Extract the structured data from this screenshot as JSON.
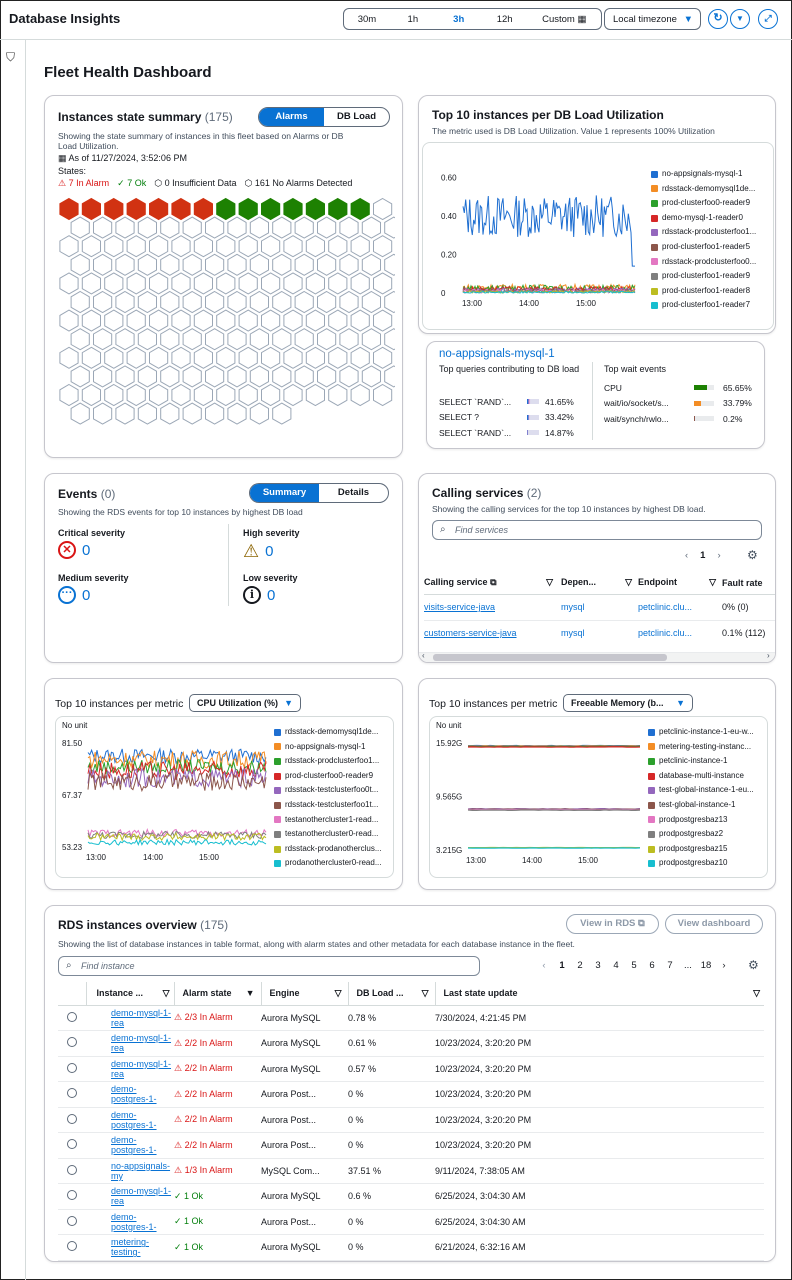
{
  "app_title": "Database Insights",
  "time_range": {
    "options": [
      "30m",
      "1h",
      "3h",
      "12h"
    ],
    "custom_label": "Custom",
    "selected": "3h"
  },
  "timezone": "Local timezone",
  "page_title": "Fleet Health Dashboard",
  "state_summary": {
    "title": "Instances state summary",
    "count": "(175)",
    "toggle": [
      "Alarms",
      "DB Load"
    ],
    "description": "Showing the state summary of instances in this fleet based on Alarms or DB Load Utilization.",
    "as_of": "As of 11/27/2024, 3:52:06 PM",
    "states_label": "States:",
    "states": {
      "alarm": "7 In Alarm",
      "ok": "7 Ok",
      "insufficient": "0 Insufficient Data",
      "no_alarms": "161 No Alarms Detected"
    },
    "hex_counts": {
      "alarm": 7,
      "ok": 7,
      "none": 161
    },
    "colors": {
      "alarm": "#d13212",
      "ok": "#1d8102"
    }
  },
  "top10_load": {
    "title": "Top 10 instances per DB Load Utilization",
    "description": "The metric used is DB Load Utilization. Value 1 represents 100% Utilization",
    "chart_data": {
      "type": "line",
      "x_ticks": [
        "13:00",
        "14:00",
        "15:00"
      ],
      "y_ticks": [
        "0.60",
        "0.40",
        "0.20",
        "0"
      ],
      "ylim": [
        0,
        0.65
      ],
      "series": [
        {
          "name": "no-appsignals-mysql-1",
          "color": "#1f6fd1",
          "level": 0.4
        },
        {
          "name": "rdsstack-demomysql1de...",
          "color": "#f38d25",
          "level": 0.03
        },
        {
          "name": "prod-clusterfoo0-reader9",
          "color": "#2ca02c",
          "level": 0.025
        },
        {
          "name": "demo-mysql-1-reader0",
          "color": "#d62728",
          "level": 0.02
        },
        {
          "name": "rdsstack-prodclusterfoo1...",
          "color": "#9467bd",
          "level": 0.015
        },
        {
          "name": "prod-clusterfoo1-reader5",
          "color": "#8c564b",
          "level": 0.012
        },
        {
          "name": "rdsstack-prodclusterfoo0...",
          "color": "#e377c2",
          "level": 0.01
        },
        {
          "name": "prod-clusterfoo1-reader9",
          "color": "#7f7f7f",
          "level": 0.008
        },
        {
          "name": "prod-clusterfoo1-reader8",
          "color": "#bcbd22",
          "level": 0.006
        },
        {
          "name": "prod-clusterfoo1-reader7",
          "color": "#17becf",
          "level": 0.004
        }
      ]
    }
  },
  "instance_detail": {
    "name": "no-appsignals-mysql-1",
    "queries_label": "Top queries contributing to DB load",
    "queries": [
      {
        "text": "SELECT `RAND`...",
        "pct": "41.65%",
        "value": 41.65
      },
      {
        "text": "SELECT ?",
        "pct": "33.42%",
        "value": 33.42
      },
      {
        "text": "SELECT `RAND`...",
        "pct": "14.87%",
        "value": 14.87
      }
    ],
    "wait_label": "Top wait events",
    "waits": [
      {
        "text": "CPU",
        "pct": "65.65%",
        "value": 65.65,
        "color": "#1d8102"
      },
      {
        "text": "wait/io/socket/s...",
        "pct": "33.79%",
        "value": 33.79,
        "color": "#f38d25"
      },
      {
        "text": "wait/synch/rwlo...",
        "pct": "0.2%",
        "value": 0.2,
        "color": "#8c564b"
      }
    ]
  },
  "events": {
    "title": "Events",
    "count": "(0)",
    "toggle": [
      "Summary",
      "Details"
    ],
    "description": "Showing the RDS events for top 10 instances by highest DB load",
    "critical_label": "Critical severity",
    "critical": "0",
    "high_label": "High severity",
    "high": "0",
    "medium_label": "Medium severity",
    "medium": "0",
    "low_label": "Low severity",
    "low": "0"
  },
  "calling_services": {
    "title": "Calling services",
    "count": "(2)",
    "description": "Showing the calling services for the top 10 instances by highest DB load.",
    "search_placeholder": "Find services",
    "page": "1",
    "columns": [
      "Calling service",
      "Depen...",
      "Endpoint",
      "Fault rate"
    ],
    "rows": [
      {
        "service": "visits-service-java",
        "dep": "mysql",
        "endpoint": "petclinic.clu...",
        "fault": "0% (0)"
      },
      {
        "service": "customers-service-java",
        "dep": "mysql",
        "endpoint": "petclinic.clu...",
        "fault": "0.1% (112)"
      }
    ]
  },
  "cpu_chart": {
    "title": "Top 10 instances per metric",
    "metric": "CPU Utilization (%)",
    "unit": "No unit",
    "chart_data": {
      "type": "line",
      "x_ticks": [
        "13:00",
        "14:00",
        "15:00"
      ],
      "y_ticks": [
        "81.50",
        "67.37",
        "53.23"
      ],
      "ylim": [
        53.23,
        81.5
      ],
      "series": [
        {
          "name": "rdsstack-demomysql1de...",
          "color": "#1f6fd1",
          "level": 78
        },
        {
          "name": "no-appsignals-mysql-1",
          "color": "#f38d25",
          "level": 77
        },
        {
          "name": "rdsstack-prodclusterfoo1...",
          "color": "#2ca02c",
          "level": 75
        },
        {
          "name": "prod-clusterfoo0-reader9",
          "color": "#d62728",
          "level": 74
        },
        {
          "name": "rdsstack-testclusterfoo0t...",
          "color": "#9467bd",
          "level": 72
        },
        {
          "name": "rdsstack-testclusterfoo1t...",
          "color": "#8c564b",
          "level": 71
        },
        {
          "name": "testanothercluster1-read...",
          "color": "#e377c2",
          "level": 57
        },
        {
          "name": "testanothercluster0-read...",
          "color": "#7f7f7f",
          "level": 56.5
        },
        {
          "name": "rdsstack-prodanotherclus...",
          "color": "#bcbd22",
          "level": 56
        },
        {
          "name": "prodanothercluster0-read...",
          "color": "#17becf",
          "level": 54.5
        }
      ]
    }
  },
  "mem_chart": {
    "title": "Top 10 instances per metric",
    "metric": "Freeable Memory (b...",
    "unit": "No unit",
    "chart_data": {
      "type": "line",
      "x_ticks": [
        "13:00",
        "14:00",
        "15:00"
      ],
      "y_ticks": [
        "15.92G",
        "9.565G",
        "3.215G"
      ],
      "ylim": [
        3.215,
        15.92
      ],
      "series": [
        {
          "name": "petclinic-instance-1-eu-w...",
          "color": "#1f6fd1",
          "level": 15.6
        },
        {
          "name": "metering-testing-instanc...",
          "color": "#f38d25",
          "level": 15.55
        },
        {
          "name": "petclinic-instance-1",
          "color": "#2ca02c",
          "level": 15.5
        },
        {
          "name": "database-multi-instance",
          "color": "#d62728",
          "level": 15.45
        },
        {
          "name": "test-global-instance-1-eu...",
          "color": "#9467bd",
          "level": 8.1
        },
        {
          "name": "test-global-instance-1",
          "color": "#8c564b",
          "level": 8.05
        },
        {
          "name": "prodpostgresbaz13",
          "color": "#e377c2",
          "level": 8.0
        },
        {
          "name": "prodpostgresbaz2",
          "color": "#7f7f7f",
          "level": 7.95
        },
        {
          "name": "prodpostgresbaz15",
          "color": "#bcbd22",
          "level": 3.5
        },
        {
          "name": "prodpostgresbaz10",
          "color": "#17becf",
          "level": 3.45
        }
      ]
    }
  },
  "rds_overview": {
    "title": "RDS instances overview",
    "count": "(175)",
    "view_rds": "View in RDS",
    "view_dashboard": "View dashboard",
    "description": "Showing the list of database instances in table format, along with alarm states and other metadata for each database instance in the fleet.",
    "search_placeholder": "Find instance",
    "pages": [
      "1",
      "2",
      "3",
      "4",
      "5",
      "6",
      "7",
      "...",
      "18"
    ],
    "columns": [
      "Instance ...",
      "Alarm state",
      "Engine",
      "DB Load ...",
      "Last state update"
    ],
    "rows": [
      {
        "name": "demo-mysql-1-rea",
        "alarm": "2/3 In Alarm",
        "status": "alarm",
        "engine": "Aurora MySQL",
        "load": "0.78 %",
        "updated": "7/30/2024, 4:21:45 PM"
      },
      {
        "name": "demo-mysql-1-rea",
        "alarm": "2/2 In Alarm",
        "status": "alarm",
        "engine": "Aurora MySQL",
        "load": "0.61 %",
        "updated": "10/23/2024, 3:20:20 PM"
      },
      {
        "name": "demo-mysql-1-rea",
        "alarm": "2/2 In Alarm",
        "status": "alarm",
        "engine": "Aurora MySQL",
        "load": "0.57 %",
        "updated": "10/23/2024, 3:20:20 PM"
      },
      {
        "name": "demo-postgres-1-",
        "alarm": "2/2 In Alarm",
        "status": "alarm",
        "engine": "Aurora Post...",
        "load": "0 %",
        "updated": "10/23/2024, 3:20:20 PM"
      },
      {
        "name": "demo-postgres-1-",
        "alarm": "2/2 In Alarm",
        "status": "alarm",
        "engine": "Aurora Post...",
        "load": "0 %",
        "updated": "10/23/2024, 3:20:20 PM"
      },
      {
        "name": "demo-postgres-1-",
        "alarm": "2/2 In Alarm",
        "status": "alarm",
        "engine": "Aurora Post...",
        "load": "0 %",
        "updated": "10/23/2024, 3:20:20 PM"
      },
      {
        "name": "no-appsignals-my",
        "alarm": "1/3 In Alarm",
        "status": "alarm",
        "engine": "MySQL Com...",
        "load": "37.51 %",
        "updated": "9/11/2024, 7:38:05 AM"
      },
      {
        "name": "demo-mysql-1-rea",
        "alarm": "1 Ok",
        "status": "ok",
        "engine": "Aurora MySQL",
        "load": "0.6 %",
        "updated": "6/25/2024, 3:04:30 AM"
      },
      {
        "name": "demo-postgres-1-",
        "alarm": "1 Ok",
        "status": "ok",
        "engine": "Aurora Post...",
        "load": "0 %",
        "updated": "6/25/2024, 3:04:30 AM"
      },
      {
        "name": "metering-testing-",
        "alarm": "1 Ok",
        "status": "ok",
        "engine": "Aurora MySQL",
        "load": "0 %",
        "updated": "6/21/2024, 6:32:16 AM"
      }
    ]
  }
}
